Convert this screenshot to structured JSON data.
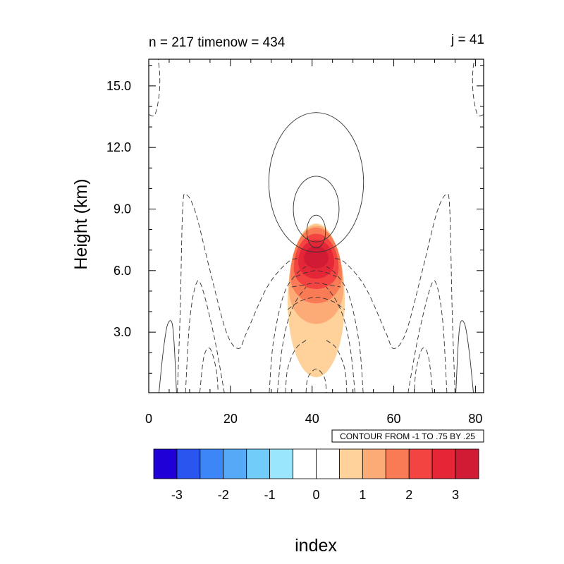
{
  "chart_data": {
    "type": "heatmap",
    "title_left": "n = 217 timenow = 434",
    "title_right": "j = 41",
    "xlabel": "index",
    "ylabel": "Height (km)",
    "xlim": [
      0,
      82
    ],
    "ylim": [
      0.05,
      16.3
    ],
    "x_ticks": [
      {
        "value": 0,
        "label": "0"
      },
      {
        "value": 20,
        "label": "20"
      },
      {
        "value": 40,
        "label": "40"
      },
      {
        "value": 60,
        "label": "60"
      },
      {
        "value": 80,
        "label": "80"
      }
    ],
    "y_ticks": [
      {
        "value": 3,
        "label": "3.0"
      },
      {
        "value": 6,
        "label": "6.0"
      },
      {
        "value": 9,
        "label": "9.0"
      },
      {
        "value": 12,
        "label": "12.0"
      },
      {
        "value": 15,
        "label": "15.0"
      }
    ],
    "contour_info": "CONTOUR FROM -1 TO .75 BY .25",
    "colorbar": {
      "colors": [
        "#1f00d6",
        "#2a55ef",
        "#3c86f7",
        "#56a9f7",
        "#72ccfa",
        "#9ae6fc",
        "#ffffff",
        "#ffffff",
        "#fed29a",
        "#fcab77",
        "#f97b56",
        "#f44442",
        "#e42637",
        "#d11b34"
      ],
      "tick_labels": [
        {
          "boundary": 1,
          "label": "-3"
        },
        {
          "boundary": 3,
          "label": "-2"
        },
        {
          "boundary": 5,
          "label": "-1"
        },
        {
          "boundary": 7,
          "label": "0"
        },
        {
          "boundary": 9,
          "label": "1"
        },
        {
          "boundary": 11,
          "label": "2"
        },
        {
          "boundary": 13,
          "label": "3"
        }
      ]
    },
    "filled_regions": [
      {
        "level": 0.5,
        "color": "#fed29a",
        "x": 41,
        "y": 4.5,
        "half_width": 7.0,
        "upper_half_height": 3.8,
        "lower_half_height": 3.7
      },
      {
        "level": 1.0,
        "color": "#fcab77",
        "x": 41,
        "y": 5.1,
        "half_width": 6.7,
        "upper_half_height": 3.1,
        "lower_half_height": 1.7
      },
      {
        "level": 1.5,
        "color": "#f97b56",
        "x": 41,
        "y": 5.7,
        "half_width": 6.3,
        "upper_half_height": 2.4,
        "lower_half_height": 1.3
      },
      {
        "level": 2.0,
        "color": "#f44442",
        "x": 41,
        "y": 6.1,
        "half_width": 5.5,
        "upper_half_height": 1.7,
        "lower_half_height": 1.0
      },
      {
        "level": 2.5,
        "color": "#e42637",
        "x": 41,
        "y": 6.4,
        "half_width": 4.4,
        "upper_half_height": 1.1,
        "lower_half_height": 0.8
      },
      {
        "level": 3.0,
        "color": "#d11b34",
        "x": 41,
        "y": 6.6,
        "half_width": 3.0,
        "upper_half_height": 0.6,
        "lower_half_height": 0.5
      }
    ],
    "positive_contours": [
      {
        "x": 41,
        "y": 10.3,
        "rx": 11.6,
        "ry": 3.4
      },
      {
        "x": 41,
        "y": 9.0,
        "rx": 5.6,
        "ry": 1.6
      },
      {
        "x": 41,
        "y": 7.9,
        "rx": 2.3,
        "ry": 0.8
      }
    ],
    "contour_lines": [
      {
        "style": "solid",
        "points": [
          [
            2.5,
            0.05
          ],
          [
            3.5,
            2.0
          ],
          [
            4.5,
            3.3
          ],
          [
            5.6,
            3.5
          ],
          [
            6.2,
            2.5
          ],
          [
            6.8,
            0.05
          ]
        ]
      },
      {
        "style": "solid",
        "points": [
          [
            79.5,
            0.05
          ],
          [
            78.5,
            2.0
          ],
          [
            77.5,
            3.3
          ],
          [
            76.4,
            3.5
          ],
          [
            75.8,
            2.5
          ],
          [
            75.2,
            0.05
          ]
        ]
      },
      {
        "style": "dashed",
        "points": [
          [
            0.0,
            13.6
          ],
          [
            1.5,
            13.6
          ],
          [
            2.5,
            14.5
          ],
          [
            2.7,
            15.5
          ],
          [
            2.3,
            16.3
          ]
        ]
      },
      {
        "style": "dashed",
        "points": [
          [
            82.0,
            13.6
          ],
          [
            80.5,
            13.6
          ],
          [
            79.5,
            14.5
          ],
          [
            79.3,
            15.5
          ],
          [
            79.7,
            16.3
          ]
        ]
      },
      {
        "style": "dashed",
        "points": [
          [
            7.0,
            0.05
          ],
          [
            7.7,
            4.0
          ],
          [
            8.3,
            9.0
          ],
          [
            9.2,
            9.7
          ],
          [
            11.5,
            8.8
          ],
          [
            15.0,
            6.0
          ],
          [
            19.0,
            3.0
          ],
          [
            22.0,
            2.2
          ],
          [
            24.0,
            3.0
          ],
          [
            29.0,
            5.2
          ],
          [
            34.0,
            6.4
          ],
          [
            37.0,
            6.6
          ]
        ]
      },
      {
        "style": "dashed",
        "points": [
          [
            75.0,
            0.05
          ],
          [
            74.3,
            4.0
          ],
          [
            73.7,
            9.0
          ],
          [
            72.8,
            9.7
          ],
          [
            70.5,
            8.8
          ],
          [
            67.0,
            6.0
          ],
          [
            63.0,
            3.0
          ],
          [
            60.0,
            2.2
          ],
          [
            58.0,
            3.0
          ],
          [
            53.0,
            5.2
          ],
          [
            48.0,
            6.4
          ],
          [
            45.0,
            6.6
          ]
        ]
      },
      {
        "style": "dashed",
        "points": [
          [
            9.0,
            0.05
          ],
          [
            10.0,
            3.5
          ],
          [
            11.5,
            5.3
          ],
          [
            13.0,
            5.2
          ],
          [
            16.0,
            2.8
          ],
          [
            18.5,
            0.05
          ]
        ]
      },
      {
        "style": "dashed",
        "points": [
          [
            73.0,
            0.05
          ],
          [
            72.0,
            3.5
          ],
          [
            70.5,
            5.3
          ],
          [
            69.0,
            5.2
          ],
          [
            66.0,
            2.8
          ],
          [
            63.5,
            0.05
          ]
        ]
      },
      {
        "style": "dashed",
        "points": [
          [
            12.5,
            0.05
          ],
          [
            13.5,
            1.8
          ],
          [
            15.0,
            2.2
          ],
          [
            16.5,
            1.2
          ],
          [
            17.0,
            0.05
          ]
        ]
      },
      {
        "style": "dashed",
        "points": [
          [
            69.5,
            0.05
          ],
          [
            68.5,
            1.8
          ],
          [
            67.0,
            2.2
          ],
          [
            65.5,
            1.2
          ],
          [
            65.0,
            0.05
          ]
        ]
      },
      {
        "style": "dashed",
        "points": [
          [
            29.5,
            0.05
          ],
          [
            30.5,
            2.5
          ],
          [
            33.0,
            4.8
          ],
          [
            36.0,
            5.8
          ],
          [
            38.5,
            6.2
          ]
        ]
      },
      {
        "style": "dashed",
        "points": [
          [
            52.5,
            0.05
          ],
          [
            51.5,
            2.5
          ],
          [
            49.0,
            4.8
          ],
          [
            46.0,
            5.8
          ],
          [
            43.5,
            6.2
          ]
        ]
      },
      {
        "style": "dashed",
        "points": [
          [
            31.5,
            0.05
          ],
          [
            32.5,
            2.0
          ],
          [
            34.0,
            3.5
          ],
          [
            36.0,
            4.5
          ],
          [
            38.5,
            5.2
          ]
        ]
      },
      {
        "style": "dashed",
        "points": [
          [
            50.5,
            0.05
          ],
          [
            49.5,
            2.0
          ],
          [
            48.0,
            3.5
          ],
          [
            46.0,
            4.5
          ],
          [
            43.5,
            5.2
          ]
        ]
      },
      {
        "style": "dashed",
        "points": [
          [
            33.5,
            0.05
          ],
          [
            34.0,
            1.2
          ],
          [
            36.0,
            2.2
          ],
          [
            38.5,
            2.6
          ]
        ]
      },
      {
        "style": "dashed",
        "points": [
          [
            48.5,
            0.05
          ],
          [
            48.0,
            1.2
          ],
          [
            46.0,
            2.2
          ],
          [
            43.5,
            2.6
          ]
        ]
      },
      {
        "style": "dashed",
        "points": [
          [
            38.5,
            0.05
          ],
          [
            39.0,
            0.8
          ],
          [
            41.0,
            1.2
          ],
          [
            43.0,
            0.8
          ],
          [
            43.5,
            0.05
          ]
        ]
      },
      {
        "style": "dashed",
        "points": [
          [
            34.0,
            4.1
          ],
          [
            37.0,
            4.5
          ],
          [
            41.0,
            4.7
          ],
          [
            45.0,
            4.5
          ],
          [
            48.0,
            4.1
          ]
        ]
      },
      {
        "style": "dashed",
        "points": [
          [
            35.0,
            5.2
          ],
          [
            38.0,
            5.3
          ],
          [
            41.0,
            5.4
          ],
          [
            44.0,
            5.3
          ],
          [
            47.0,
            5.2
          ]
        ]
      },
      {
        "style": "dashed",
        "points": [
          [
            36.0,
            5.7
          ],
          [
            38.5,
            5.9
          ],
          [
            41.0,
            6.0
          ],
          [
            43.5,
            5.9
          ],
          [
            46.0,
            5.7
          ]
        ]
      }
    ]
  }
}
